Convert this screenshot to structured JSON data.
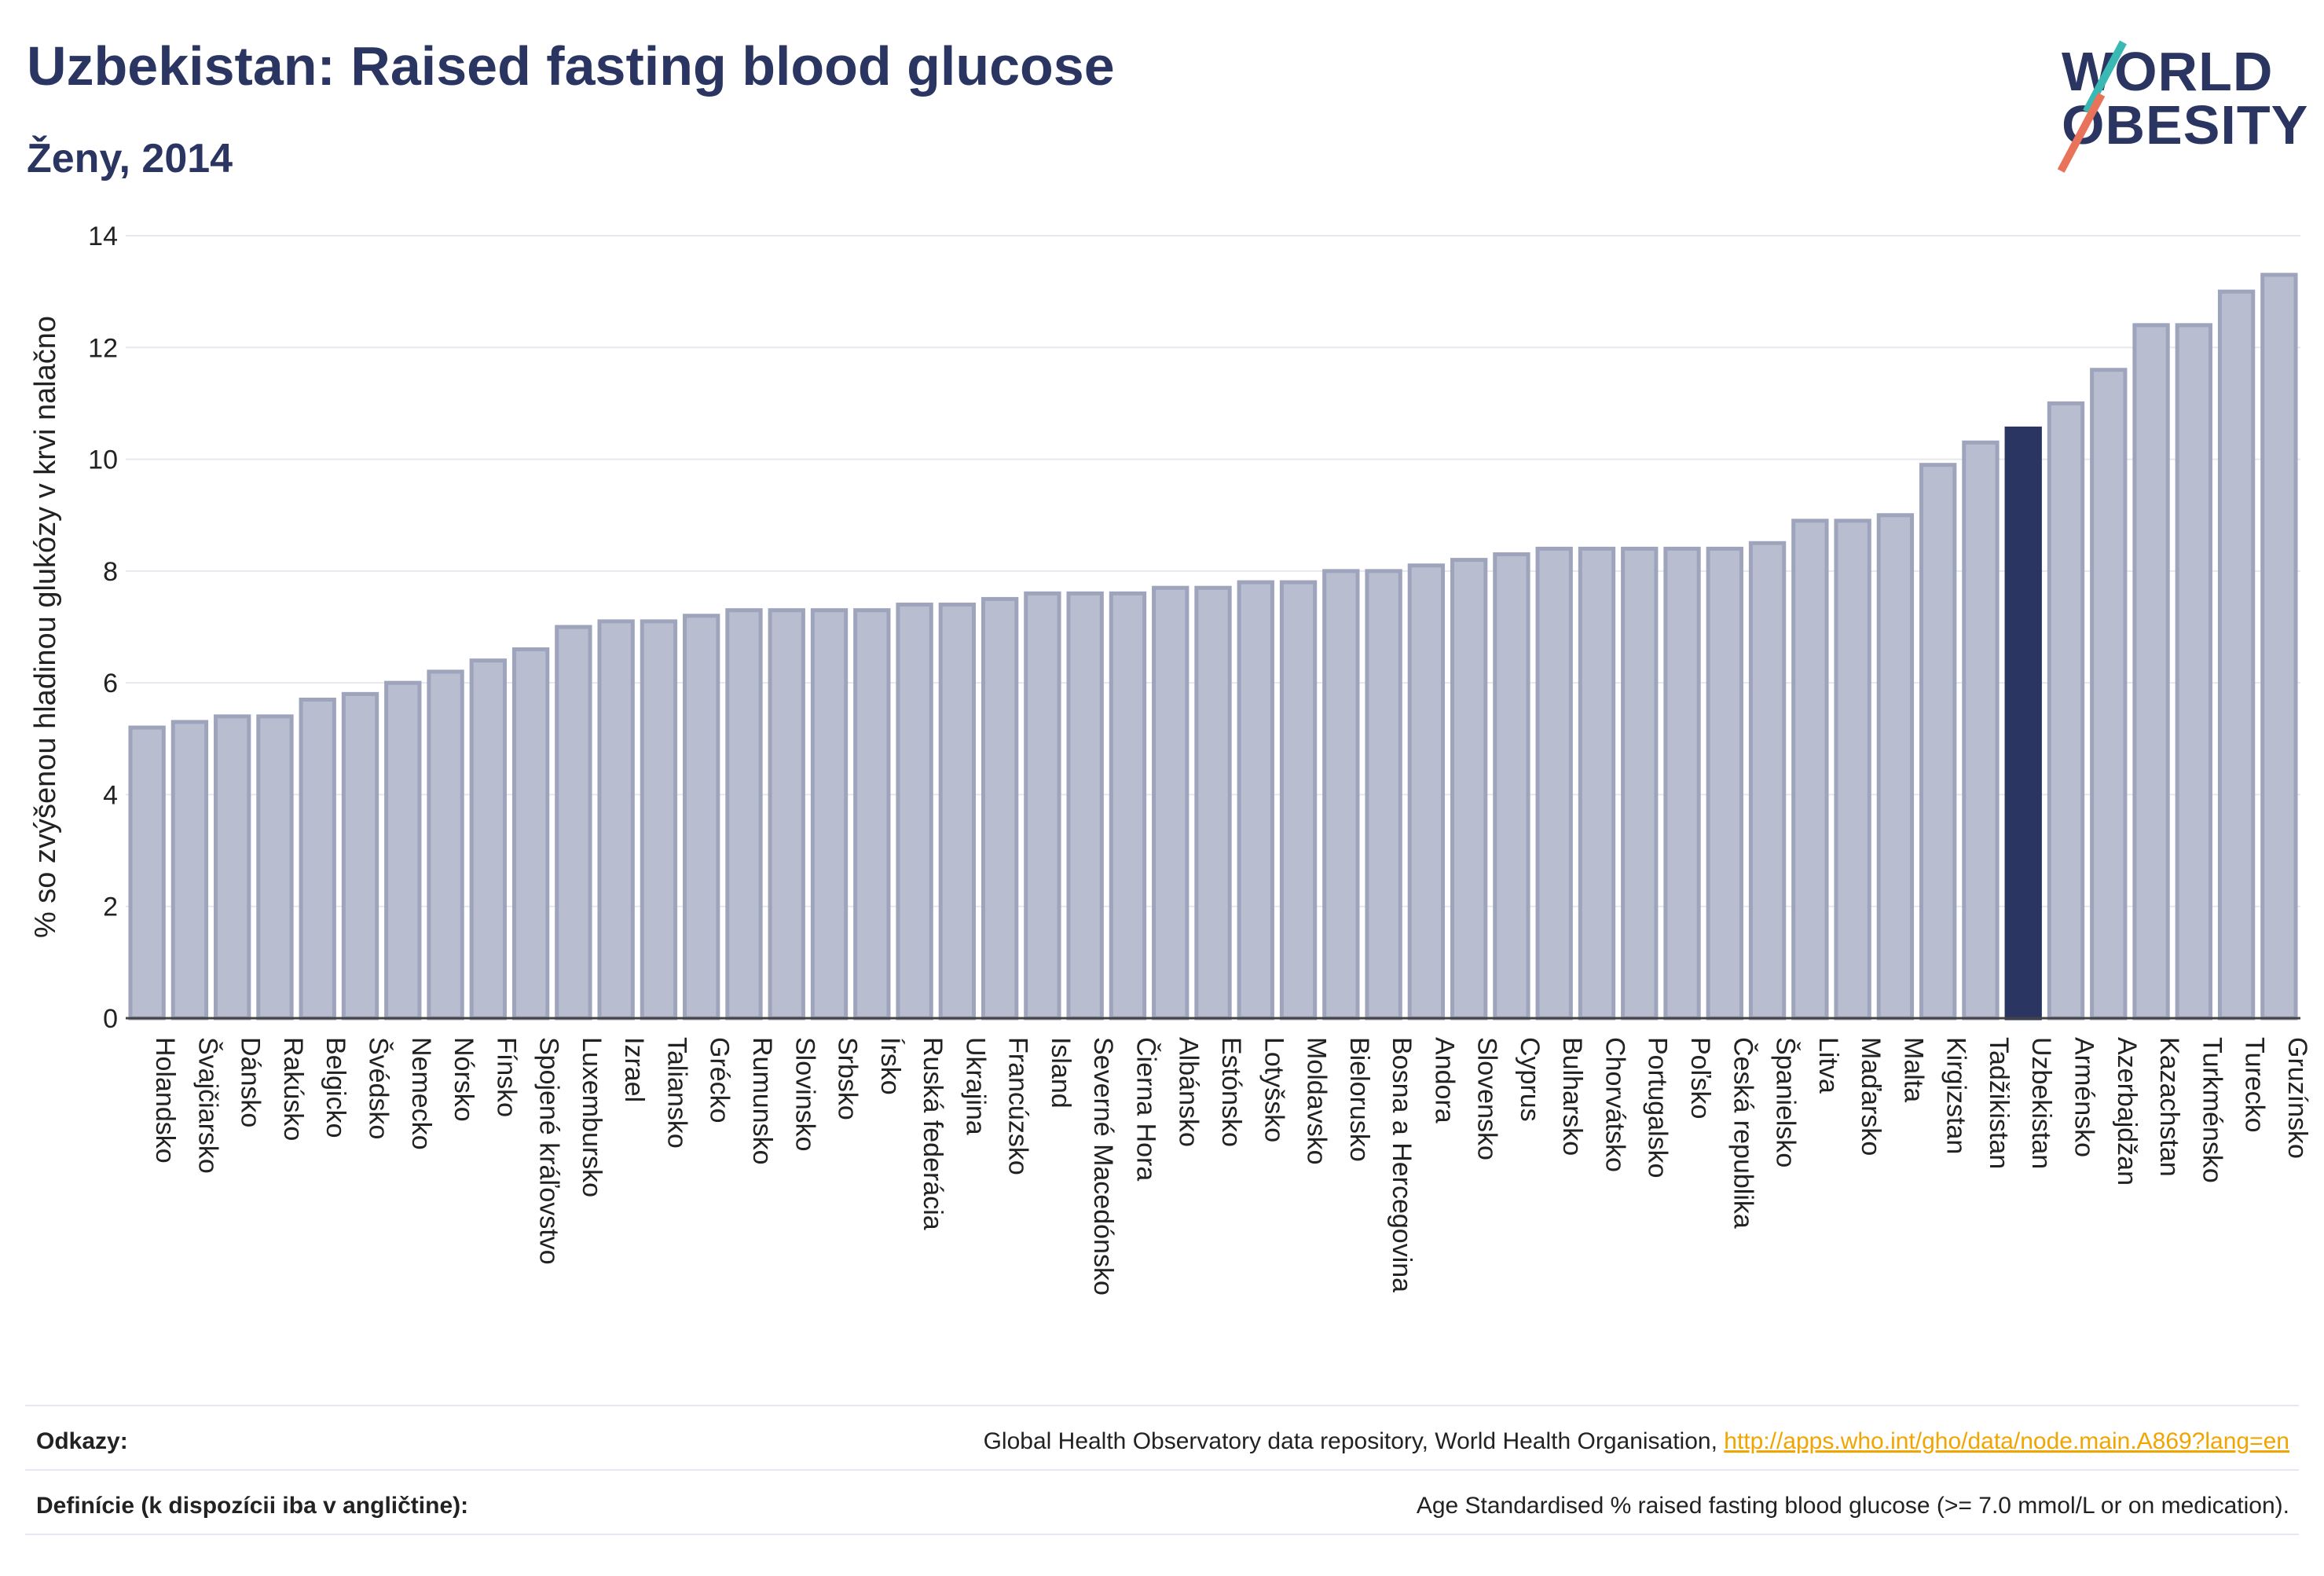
{
  "header": {
    "title": "Uzbekistan: Raised fasting blood glucose",
    "subtitle": "Ženy, 2014"
  },
  "logo": {
    "line1": "WORLD",
    "line2": "OBESITY",
    "colors": {
      "text": "#2b3561",
      "accent_teal": "#3ab8b3",
      "accent_coral": "#e8735a"
    }
  },
  "chart_data": {
    "type": "bar",
    "title": "Uzbekistan: Raised fasting blood glucose",
    "subtitle": "Ženy, 2014",
    "ylabel": "% so zvýšenou hladinou glukózy v krvi nalačno",
    "xlabel": "",
    "ylim": [
      0,
      14
    ],
    "yticks": [
      0,
      2,
      4,
      6,
      8,
      10,
      12,
      14
    ],
    "grid": true,
    "highlight": "Uzbekistan",
    "colors": {
      "bar": "#b8bdcf",
      "bar_border": "#9ea4bb",
      "highlight": "#2b3561"
    },
    "categories": [
      "Holandsko",
      "Švajčiarsko",
      "Dánsko",
      "Rakúsko",
      "Belgicko",
      "Švédsko",
      "Nemecko",
      "Nórsko",
      "Fínsko",
      "Spojené kráľovstvo",
      "Luxembursko",
      "Izrael",
      "Taliansko",
      "Grécko",
      "Rumunsko",
      "Slovinsko",
      "Srbsko",
      "Írsko",
      "Ruská federácia",
      "Ukrajina",
      "Francúzsko",
      "Island",
      "Severné Macedónsko",
      "Čierna Hora",
      "Albánsko",
      "Estónsko",
      "Lotyšsko",
      "Moldavsko",
      "Bielorusko",
      "Bosna a Hercegovina",
      "Andora",
      "Slovensko",
      "Cyprus",
      "Bulharsko",
      "Chorvátsko",
      "Portugalsko",
      "Poľsko",
      "Česká republika",
      "Španielsko",
      "Litva",
      "Maďarsko",
      "Malta",
      "Kirgizstan",
      "Tadžikistan",
      "Uzbekistan",
      "Arménsko",
      "Azerbajdžan",
      "Kazachstan",
      "Turkménsko",
      "Turecko",
      "Gruzínsko"
    ],
    "values": [
      5.2,
      5.3,
      5.4,
      5.4,
      5.7,
      5.8,
      6.0,
      6.2,
      6.4,
      6.6,
      7.0,
      7.1,
      7.1,
      7.2,
      7.3,
      7.3,
      7.3,
      7.3,
      7.4,
      7.4,
      7.5,
      7.6,
      7.6,
      7.6,
      7.7,
      7.7,
      7.8,
      7.8,
      8.0,
      8.0,
      8.1,
      8.2,
      8.3,
      8.4,
      8.4,
      8.4,
      8.4,
      8.4,
      8.5,
      8.9,
      8.9,
      9.0,
      9.9,
      10.3,
      10.55,
      11.0,
      11.6,
      12.4,
      12.4,
      13.0,
      13.3
    ]
  },
  "footer": {
    "references_label": "Odkazy:",
    "references_text": "Global Health Observatory data repository, World Health Organisation, ",
    "references_link": "http://apps.who.int/gho/data/node.main.A869?lang=en",
    "definition_label": "Definície (k dispozícii iba v angličtine):",
    "definition_text": "Age Standardised % raised fasting blood glucose (>= 7.0 mmol/L or on medication)."
  }
}
